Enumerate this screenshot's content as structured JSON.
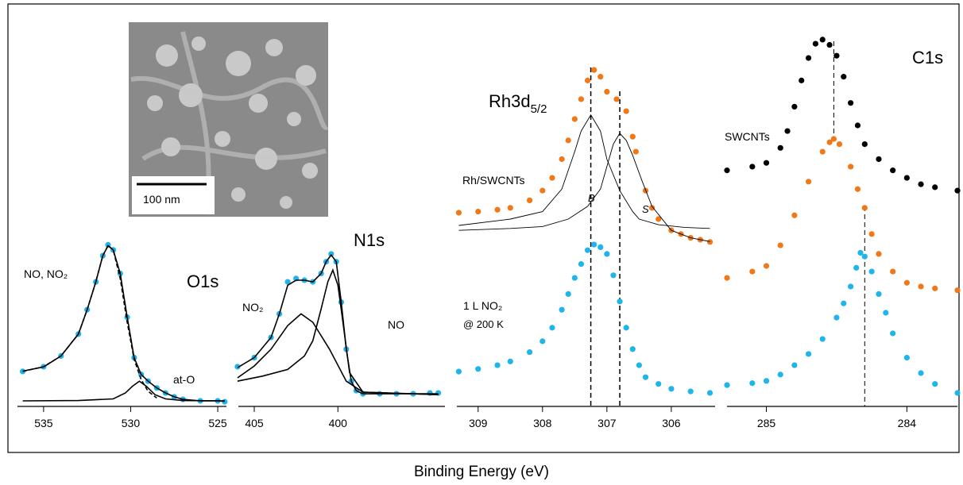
{
  "x_label": "Binding Energy (eV)",
  "inset": {
    "scale_bar": "100 nm"
  },
  "chart_data": [
    {
      "type": "line",
      "title": "O1s",
      "xlim": [
        536.5,
        524.5
      ],
      "ylim": [
        0,
        100
      ],
      "xticks": [
        535,
        530,
        525
      ],
      "annotations": [
        "NO, NO₂",
        "at-O"
      ],
      "series": [
        {
          "style": "markers",
          "color": "#1eb4ec",
          "x": [
            536.2,
            535,
            534,
            533,
            532.5,
            532,
            531.6,
            531.3,
            531,
            530.6,
            530.2,
            529.8,
            529.4,
            529,
            528.5,
            528,
            527.5,
            527,
            526,
            525,
            524.6
          ],
          "values": [
            20.8,
            23.6,
            30,
            43,
            57.5,
            74,
            89.6,
            96,
            93,
            79,
            53,
            29,
            19,
            15,
            11,
            8,
            5.7,
            4.2,
            3.3,
            3.3,
            2.8
          ]
        },
        {
          "style": "solid",
          "color": "#000000",
          "x": [
            536.2,
            535,
            534,
            533,
            532.5,
            532,
            531.6,
            531.3,
            531,
            530.6,
            530.2,
            529.8,
            529.4,
            529,
            528.5,
            528,
            527.5,
            527,
            526,
            525,
            524.6
          ],
          "values": [
            21,
            23.5,
            30,
            43,
            57.5,
            74,
            89.6,
            95.5,
            93,
            79,
            53,
            29,
            19,
            15,
            11,
            8,
            5.7,
            4.2,
            3.3,
            3.3,
            3
          ]
        },
        {
          "style": "dashed",
          "color": "#000000",
          "x": [
            536.2,
            535,
            534,
            533,
            532.5,
            532,
            531.6,
            531.3,
            531,
            530.6,
            530.2,
            529.8,
            529.4,
            529,
            528.5
          ],
          "values": [
            20.8,
            23.6,
            30,
            43,
            57.5,
            74,
            89.6,
            95.5,
            93,
            76,
            50,
            28,
            16,
            9,
            5
          ]
        },
        {
          "style": "solid",
          "color": "#000000",
          "x": [
            536.2,
            533,
            531,
            530.3,
            529.9,
            529.5,
            529.1,
            528.6,
            528,
            527,
            524.6
          ],
          "values": [
            3.3,
            3.5,
            4.5,
            8,
            12,
            15,
            12,
            7,
            4.5,
            3.5,
            3.3
          ]
        }
      ]
    },
    {
      "type": "line",
      "title": "N1s",
      "xlim": [
        405.95,
        393.6
      ],
      "ylim": [
        0,
        100
      ],
      "xticks": [
        405,
        400
      ],
      "annotations": [
        "NO₂",
        "NO"
      ],
      "series": [
        {
          "style": "markers",
          "color": "#1eb4ec",
          "x": [
            406,
            405,
            404,
            403.5,
            403,
            402.5,
            402,
            401.5,
            401,
            400.7,
            400.4,
            400.1,
            399.8,
            399.5,
            399.2,
            398.9,
            398.5,
            397.5,
            396.5,
            395.5,
            394.5,
            394
          ],
          "values": [
            23.6,
            29,
            41,
            55,
            74,
            76,
            75,
            74,
            79,
            86,
            90.6,
            86,
            62,
            34,
            15,
            9.4,
            7.5,
            7.5,
            7.5,
            7.5,
            8,
            8
          ]
        },
        {
          "style": "solid",
          "color": "#000000",
          "x": [
            406,
            405,
            404,
            403.5,
            403,
            402.5,
            402,
            401.5,
            401,
            400.7,
            400.4,
            400.1,
            399.8,
            399.5,
            399.2,
            398.9,
            398.5,
            397,
            394
          ],
          "values": [
            23,
            29,
            41,
            55,
            72,
            75,
            75,
            74,
            79,
            86,
            90,
            86,
            62,
            34,
            15,
            9.4,
            7.5,
            7.5,
            7.5
          ]
        },
        {
          "style": "solid",
          "color": "#000000",
          "x": [
            406,
            405,
            404,
            403,
            402.2,
            401.5,
            400.5,
            399.5,
            398.5,
            394
          ],
          "values": [
            17,
            24,
            34,
            48,
            55,
            50,
            34,
            15,
            8.5,
            7
          ]
        },
        {
          "style": "solid",
          "color": "#000000",
          "x": [
            406,
            404.5,
            403,
            402,
            401.5,
            401,
            400.6,
            400.3,
            400,
            399.8,
            399.3,
            398.5,
            394
          ],
          "values": [
            15,
            18,
            22,
            30,
            39,
            58,
            74,
            81,
            72,
            57.5,
            20,
            8.5,
            7
          ]
        }
      ]
    },
    {
      "type": "line",
      "title": "Rh3d",
      "title_subscript": "5/2",
      "xlim": [
        309.33,
        305.32
      ],
      "ylim": [
        0,
        100
      ],
      "xticks": [
        309,
        308,
        307,
        306
      ],
      "annotations": [
        "Rh/SWCNTs",
        "B",
        "S",
        "1 L NO₂",
        "@ 200 K"
      ],
      "reference_lines": [
        307.25,
        306.8
      ],
      "series": [
        {
          "style": "markers",
          "color": "#f07818",
          "x": [
            309.3,
            309,
            308.7,
            308.5,
            308.2,
            308,
            307.85,
            307.7,
            307.6,
            307.5,
            307.4,
            307.3,
            307.2,
            307.1,
            307,
            306.85,
            306.7,
            306.6,
            306.55,
            306.4,
            306.3,
            306.2,
            306,
            305.85,
            305.7,
            305.55,
            305.4
          ],
          "values": [
            51.7,
            52,
            52.5,
            53,
            55,
            57.6,
            61,
            66,
            71,
            76.7,
            82,
            87,
            89.8,
            88,
            84,
            82,
            78.8,
            72,
            68,
            57.6,
            53,
            50,
            47,
            46,
            45,
            44.5,
            43.9
          ]
        },
        {
          "style": "thin",
          "color": "#000000",
          "x": [
            309.3,
            308.5,
            308,
            307.7,
            307.5,
            307.4,
            307.25,
            307.1,
            307,
            306.8,
            306.6,
            306.5,
            306.2,
            305.8,
            305.4
          ],
          "values": [
            48.3,
            50,
            52,
            58,
            68,
            73.5,
            77.8,
            73.5,
            66,
            57.6,
            52,
            50,
            48.5,
            47.8,
            47.5
          ]
        },
        {
          "style": "thin",
          "color": "#000000",
          "x": [
            309.3,
            308.5,
            308,
            307.6,
            307.3,
            307.1,
            307,
            306.9,
            306.8,
            306.7,
            306.6,
            306.45,
            306.3,
            306,
            305.7,
            305.4
          ],
          "values": [
            47,
            47.5,
            48,
            50,
            53.4,
            58,
            64,
            70,
            72.9,
            71,
            67,
            60,
            53.4,
            47,
            45,
            44
          ]
        },
        {
          "style": "markers",
          "color": "#1eb4ec",
          "x": [
            309.3,
            309,
            308.7,
            308.5,
            308.2,
            308,
            307.85,
            307.7,
            307.6,
            307.5,
            307.4,
            307.3,
            307.2,
            307.1,
            307,
            306.9,
            306.8,
            306.7,
            306.6,
            306.5,
            306.4,
            306.2,
            306,
            305.7,
            305.4
          ],
          "values": [
            9.3,
            10,
            11,
            12,
            14.5,
            17.4,
            21,
            25.8,
            30,
            34.3,
            38,
            41.7,
            43.2,
            42.5,
            40.7,
            35,
            28,
            21,
            15.3,
            11,
            7.8,
            6,
            4.7,
            4,
            3.6
          ]
        }
      ]
    },
    {
      "type": "line",
      "title": "C1s",
      "xlim": [
        285.28,
        283.64
      ],
      "ylim": [
        0,
        100
      ],
      "xticks": [
        285,
        284
      ],
      "annotations": [
        "SWCNTs"
      ],
      "reference_lines": [
        284.52,
        284.3
      ],
      "series": [
        {
          "style": "markers",
          "color": "#000000",
          "x": [
            285.28,
            285.1,
            285,
            284.9,
            284.85,
            284.8,
            284.75,
            284.7,
            284.65,
            284.6,
            284.55,
            284.5,
            284.45,
            284.4,
            284.35,
            284.3,
            284.2,
            284.1,
            284,
            283.9,
            283.8,
            283.64
          ],
          "values": [
            63,
            64,
            65,
            69,
            73.5,
            80,
            87,
            93,
            96.8,
            97.9,
            96.5,
            93.6,
            88,
            81,
            75,
            70,
            66,
            63,
            61,
            59.3,
            58.5,
            57.6
          ]
        },
        {
          "style": "markers",
          "color": "#f07818",
          "x": [
            285.28,
            285.1,
            285,
            284.9,
            284.8,
            284.7,
            284.6,
            284.55,
            284.52,
            284.48,
            284.4,
            284.35,
            284.3,
            284.25,
            284.2,
            284.1,
            284,
            283.9,
            283.8,
            283.64
          ],
          "values": [
            34.3,
            36,
            37.5,
            43,
            51,
            60,
            68,
            70.5,
            71.4,
            70,
            64,
            58,
            53,
            46,
            40.7,
            36,
            33,
            32,
            31.5,
            31
          ]
        },
        {
          "style": "markers",
          "color": "#1eb4ec",
          "x": [
            285.28,
            285.1,
            285,
            284.9,
            284.8,
            284.7,
            284.6,
            284.5,
            284.45,
            284.4,
            284.36,
            284.33,
            284.3,
            284.25,
            284.2,
            284.15,
            284.1,
            284,
            283.9,
            283.8,
            283.64
          ],
          "values": [
            5.7,
            6.2,
            6.8,
            8.5,
            11,
            14,
            18,
            23.7,
            27.5,
            32,
            37,
            41,
            40,
            36,
            30,
            25,
            19.5,
            13,
            8.9,
            6,
            3.6
          ]
        }
      ]
    }
  ]
}
